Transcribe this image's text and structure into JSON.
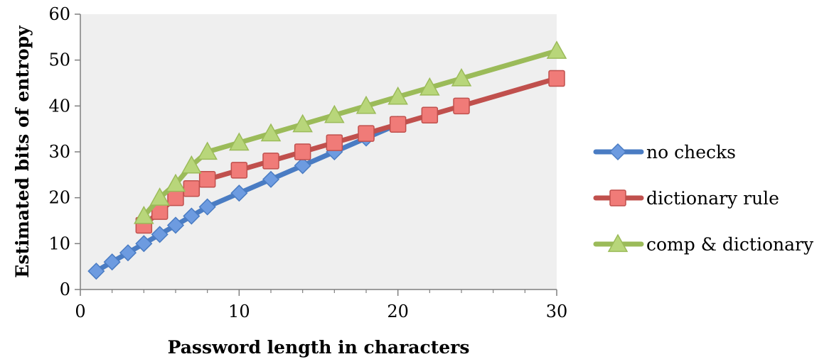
{
  "chart_data": {
    "type": "line",
    "title": "",
    "xlabel": "Password length in characters",
    "ylabel": "Estimated bits of entropy",
    "xlim": [
      0,
      30
    ],
    "ylim": [
      0,
      60
    ],
    "xticks": [
      0,
      10,
      20,
      30
    ],
    "yticks": [
      0,
      10,
      20,
      30,
      40,
      50,
      60
    ],
    "x_minor_ticks": [
      2,
      4,
      6,
      8,
      12,
      14,
      16,
      18,
      22,
      24,
      26,
      28
    ],
    "grid": false,
    "plot_background": "#efefef",
    "legend_position": "right",
    "series": [
      {
        "name": "no checks",
        "color": "#4a7cc3",
        "marker": "diamond",
        "marker_fill": "#6d9be0",
        "x": [
          1,
          2,
          3,
          4,
          5,
          6,
          7,
          8,
          10,
          12,
          14,
          16,
          18,
          20
        ],
        "y": [
          4,
          6,
          8,
          10,
          12,
          14,
          16,
          18,
          21,
          24,
          27,
          30,
          33,
          36
        ]
      },
      {
        "name": "dictionary rule",
        "color": "#c0504d",
        "marker": "square",
        "marker_fill": "#f07b78",
        "x": [
          4,
          5,
          6,
          7,
          8,
          10,
          12,
          14,
          16,
          18,
          20,
          22,
          24,
          30
        ],
        "y": [
          14,
          17,
          20,
          22,
          24,
          26,
          28,
          30,
          32,
          34,
          36,
          38,
          40,
          46
        ]
      },
      {
        "name": "comp & dictionary",
        "color": "#9bbb59",
        "marker": "triangle",
        "marker_fill": "#b8d67a",
        "x": [
          4,
          5,
          6,
          7,
          8,
          10,
          12,
          14,
          16,
          18,
          20,
          22,
          24,
          30
        ],
        "y": [
          16,
          20,
          23,
          27,
          30,
          32,
          34,
          36,
          38,
          40,
          42,
          44,
          46,
          52
        ]
      }
    ]
  }
}
